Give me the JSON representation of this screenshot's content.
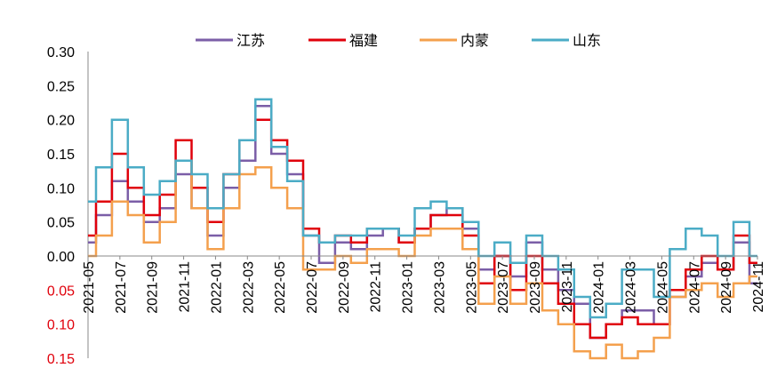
{
  "chart_data": {
    "type": "line",
    "title": "",
    "xlabel": "",
    "ylabel": "",
    "legend_position": "top-center",
    "ylim": [
      -0.15,
      0.3
    ],
    "y_ticks": [
      0.3,
      0.25,
      0.2,
      0.15,
      0.1,
      0.05,
      0.0,
      -0.05,
      -0.1,
      -0.15
    ],
    "y_tick_labels": [
      "0.30",
      "0.25",
      "0.20",
      "0.15",
      "0.10",
      "0.05",
      "0.00",
      "0.05",
      "0.10",
      "0.15"
    ],
    "negative_label_color": "#e0000b",
    "positive_label_color": "#000000",
    "x_range": [
      "2021-05",
      "2024-11"
    ],
    "x_tick_labels": [
      "2021-05",
      "2021-07",
      "2021-09",
      "2021-11",
      "2022-01",
      "2022-03",
      "2022-05",
      "2022-07",
      "2022-09",
      "2022-11",
      "2023-01",
      "2023-03",
      "2023-05",
      "2023-07",
      "2023-09",
      "2023-11",
      "2024-01",
      "2024-03",
      "2024-05",
      "2024-07",
      "2024-09",
      "2024-11"
    ],
    "x_index": [
      0,
      1,
      2,
      3,
      4,
      5,
      6,
      7,
      8,
      9,
      10,
      11,
      12,
      13,
      14,
      15,
      16,
      17,
      18,
      19,
      20,
      21,
      22,
      23,
      24,
      25,
      26,
      27,
      28,
      29,
      30,
      31,
      32,
      33,
      34,
      35,
      36,
      37,
      38,
      39,
      40,
      41,
      42
    ],
    "series": [
      {
        "name": "江苏",
        "color": "#7b5ea7",
        "values": [
          0.02,
          0.06,
          0.11,
          0.08,
          0.05,
          0.07,
          0.12,
          0.07,
          0.03,
          0.1,
          0.14,
          0.22,
          0.15,
          0.12,
          0.03,
          -0.01,
          0.02,
          0.01,
          0.03,
          0.04,
          0.02,
          0.04,
          0.06,
          0.07,
          0.04,
          -0.02,
          0.0,
          -0.03,
          0.02,
          -0.02,
          -0.05,
          -0.07,
          -0.12,
          -0.1,
          -0.08,
          -0.08,
          -0.1,
          -0.06,
          -0.03,
          -0.01,
          -0.02,
          0.02,
          -0.04
        ]
      },
      {
        "name": "福建",
        "color": "#e0000b",
        "values": [
          0.03,
          0.08,
          0.15,
          0.1,
          0.06,
          0.09,
          0.17,
          0.1,
          0.05,
          0.12,
          0.17,
          0.2,
          0.17,
          0.14,
          0.04,
          0.02,
          0.03,
          0.02,
          0.04,
          0.04,
          0.02,
          0.04,
          0.06,
          0.06,
          0.03,
          -0.04,
          0.0,
          -0.05,
          0.0,
          -0.04,
          -0.07,
          -0.1,
          -0.12,
          -0.1,
          -0.09,
          -0.1,
          -0.1,
          -0.05,
          -0.02,
          0.0,
          -0.02,
          0.03,
          -0.01
        ]
      },
      {
        "name": "内蒙",
        "color": "#f4a04d",
        "values": [
          0.0,
          0.03,
          0.08,
          0.06,
          0.02,
          0.05,
          0.14,
          0.07,
          0.01,
          0.07,
          0.12,
          0.13,
          0.1,
          0.07,
          -0.02,
          -0.02,
          0.0,
          -0.01,
          0.01,
          0.01,
          0.0,
          0.03,
          0.04,
          0.04,
          0.01,
          -0.07,
          -0.03,
          -0.07,
          -0.04,
          -0.08,
          -0.1,
          -0.14,
          -0.15,
          -0.13,
          -0.15,
          -0.14,
          -0.12,
          -0.06,
          -0.05,
          -0.04,
          -0.06,
          -0.04,
          -0.03
        ]
      },
      {
        "name": "山东",
        "color": "#4bacc6",
        "values": [
          0.08,
          0.13,
          0.2,
          0.13,
          0.09,
          0.11,
          0.14,
          0.12,
          0.07,
          0.12,
          0.17,
          0.23,
          0.16,
          0.11,
          0.03,
          0.02,
          0.03,
          0.03,
          0.04,
          0.04,
          0.03,
          0.07,
          0.08,
          0.07,
          0.05,
          0.0,
          0.02,
          -0.01,
          0.03,
          0.0,
          -0.02,
          -0.06,
          -0.09,
          -0.07,
          -0.02,
          -0.02,
          -0.06,
          0.01,
          0.04,
          0.03,
          0.0,
          0.05,
          0.0
        ]
      }
    ]
  }
}
